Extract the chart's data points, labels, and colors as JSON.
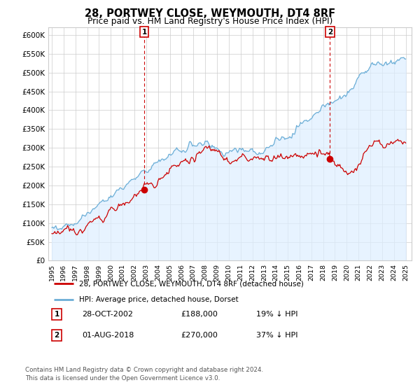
{
  "title": "28, PORTWEY CLOSE, WEYMOUTH, DT4 8RF",
  "subtitle": "Price paid vs. HM Land Registry's House Price Index (HPI)",
  "hpi_label": "HPI: Average price, detached house, Dorset",
  "property_label": "28, PORTWEY CLOSE, WEYMOUTH, DT4 8RF (detached house)",
  "hpi_color": "#6baed6",
  "hpi_fill_color": "#ddeeff",
  "property_color": "#cc0000",
  "marker_color": "#cc0000",
  "sale1_x": 2002.83,
  "sale1_y": 188000,
  "sale2_x": 2018.58,
  "sale2_y": 270000,
  "sale1_date": "28-OCT-2002",
  "sale1_price": "£188,000",
  "sale1_note": "19% ↓ HPI",
  "sale2_date": "01-AUG-2018",
  "sale2_price": "£270,000",
  "sale2_note": "37% ↓ HPI",
  "ylim": [
    0,
    620000
  ],
  "yticks": [
    0,
    50000,
    100000,
    150000,
    200000,
    250000,
    300000,
    350000,
    400000,
    450000,
    500000,
    550000,
    600000
  ],
  "xlim_lo": 1994.7,
  "xlim_hi": 2025.5,
  "footnote1": "Contains HM Land Registry data © Crown copyright and database right 2024.",
  "footnote2": "This data is licensed under the Open Government Licence v3.0.",
  "background_color": "#ffffff",
  "grid_color": "#cccccc",
  "box_edge_color": "#cc0000"
}
